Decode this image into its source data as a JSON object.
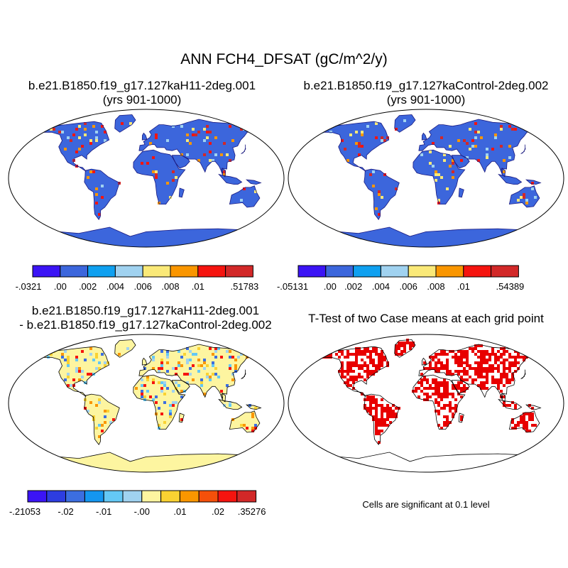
{
  "main_title": "ANN FCH4_DFSAT (gC/m^2/y)",
  "panels": {
    "case1": {
      "title_line1": "b.e21.B1850.f19_g17.127kaH11-2deg.001",
      "title_line2": "(yrs 901-1000)"
    },
    "case2": {
      "title_line1": "b.e21.B1850.f19_g17.127kaControl-2deg.002",
      "title_line2": "(yrs 901-1000)"
    },
    "diff": {
      "title_line1": "b.e21.B1850.f19_g17.127kaH11-2deg.001",
      "title_line2": "- b.e21.B1850.f19_g17.127kaControl-2deg.002"
    },
    "ttest": {
      "title": "T-Test of two Case means at each grid point",
      "note": "Cells are significant at 0.1 level"
    }
  },
  "colorbars": {
    "case1": {
      "colors": [
        "#3b14f5",
        "#3c66dc",
        "#0fa0f0",
        "#a0d2f0",
        "#fae978",
        "#fa9600",
        "#f5140f",
        "#d22828"
      ],
      "labels": [
        "-.0321",
        ".00",
        ".002",
        ".004",
        ".006",
        ".008",
        ".01",
        ".51783"
      ]
    },
    "case2": {
      "colors": [
        "#3b14f5",
        "#3c66dc",
        "#0fa0f0",
        "#a0d2f0",
        "#fae978",
        "#fa9600",
        "#f5140f",
        "#d22828"
      ],
      "labels": [
        "-.05131",
        ".00",
        ".002",
        ".004",
        ".006",
        ".008",
        ".01",
        ".54389"
      ]
    },
    "diff": {
      "colors": [
        "#3b14f5",
        "#2d3de0",
        "#3c6ee0",
        "#1496f0",
        "#64c8f5",
        "#a0d2f0",
        "#fdf5a0",
        "#fad232",
        "#fa9600",
        "#f5500a",
        "#f5140f",
        "#d22828"
      ],
      "labels": [
        "-.21053",
        "-.02",
        "-.01",
        "-.00",
        ".01",
        ".02",
        ".35276"
      ]
    }
  },
  "map_palettes": {
    "case": {
      "ocean": "#ffffff",
      "land": "#3c66dc",
      "hot": [
        "#f5140f",
        "#d22828",
        "#fa9600",
        "#fae978",
        "#a0d2f0"
      ],
      "coast": "#1a1a80"
    },
    "diff": {
      "ocean": "#ffffff",
      "land": "#fdf5a0",
      "hot": [
        "#a0d2f0",
        "#64c8f5",
        "#3c6ee0",
        "#fad232",
        "#fa9600",
        "#f5140f"
      ],
      "coast": "#000000"
    },
    "ttest": {
      "ocean": "#ffffff",
      "land": "#ffffff",
      "hot": [
        "#e80000"
      ],
      "coast": "#000000"
    }
  }
}
